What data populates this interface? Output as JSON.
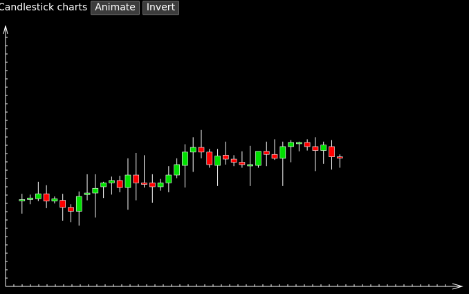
{
  "toolbar": {
    "title": "Candlestick charts",
    "animate_label": "Animate",
    "invert_label": "Invert"
  },
  "colors": {
    "background": "#000000",
    "up": "#00e000",
    "down": "#ff0000",
    "wick": "#ffffff",
    "axis": "#ffffff"
  },
  "chart_data": {
    "type": "candlestick",
    "title": "",
    "xlabel": "",
    "ylabel": "",
    "xlim": [
      0,
      55
    ],
    "ylim": [
      0,
      100
    ],
    "grid": false,
    "candles": [
      {
        "x": 1,
        "open": 33.0,
        "high": 35.5,
        "low": 27.9,
        "close": 33.3
      },
      {
        "x": 2,
        "open": 33.3,
        "high": 35.2,
        "low": 31.5,
        "close": 33.9
      },
      {
        "x": 3,
        "open": 33.6,
        "high": 40.1,
        "low": 32.7,
        "close": 35.5
      },
      {
        "x": 4,
        "open": 35.5,
        "high": 38.8,
        "low": 30.0,
        "close": 32.7
      },
      {
        "x": 5,
        "open": 32.7,
        "high": 34.5,
        "low": 31.8,
        "close": 33.6
      },
      {
        "x": 6,
        "open": 33.0,
        "high": 35.5,
        "low": 25.2,
        "close": 30.3
      },
      {
        "x": 7,
        "open": 30.3,
        "high": 31.5,
        "low": 24.6,
        "close": 28.8
      },
      {
        "x": 8,
        "open": 28.8,
        "high": 36.4,
        "low": 23.3,
        "close": 34.5
      },
      {
        "x": 9,
        "open": 35.2,
        "high": 43.0,
        "low": 33.0,
        "close": 35.8
      },
      {
        "x": 10,
        "open": 35.8,
        "high": 43.0,
        "low": 26.4,
        "close": 37.6
      },
      {
        "x": 11,
        "open": 38.2,
        "high": 40.1,
        "low": 33.9,
        "close": 39.7
      },
      {
        "x": 12,
        "open": 39.7,
        "high": 42.1,
        "low": 35.2,
        "close": 40.6
      },
      {
        "x": 13,
        "open": 40.6,
        "high": 42.4,
        "low": 36.1,
        "close": 37.9
      },
      {
        "x": 14,
        "open": 37.9,
        "high": 49.1,
        "low": 29.4,
        "close": 42.7
      },
      {
        "x": 15,
        "open": 42.7,
        "high": 51.2,
        "low": 33.0,
        "close": 39.7
      },
      {
        "x": 16,
        "open": 39.7,
        "high": 50.3,
        "low": 37.9,
        "close": 39.1
      },
      {
        "x": 17,
        "open": 39.7,
        "high": 43.0,
        "low": 32.1,
        "close": 38.2
      },
      {
        "x": 18,
        "open": 38.2,
        "high": 41.2,
        "low": 36.7,
        "close": 39.7
      },
      {
        "x": 19,
        "open": 39.7,
        "high": 46.1,
        "low": 36.1,
        "close": 42.7
      },
      {
        "x": 20,
        "open": 42.7,
        "high": 49.1,
        "low": 41.5,
        "close": 46.7
      },
      {
        "x": 21,
        "open": 46.4,
        "high": 54.5,
        "low": 37.9,
        "close": 51.5
      },
      {
        "x": 22,
        "open": 51.5,
        "high": 57.2,
        "low": 43.9,
        "close": 53.3
      },
      {
        "x": 23,
        "open": 53.3,
        "high": 60.0,
        "low": 49.1,
        "close": 51.5
      },
      {
        "x": 24,
        "open": 51.5,
        "high": 52.7,
        "low": 45.5,
        "close": 46.7
      },
      {
        "x": 25,
        "open": 46.4,
        "high": 52.7,
        "low": 38.5,
        "close": 50.0
      },
      {
        "x": 26,
        "open": 50.3,
        "high": 55.5,
        "low": 46.7,
        "close": 48.8
      },
      {
        "x": 27,
        "open": 48.8,
        "high": 50.3,
        "low": 46.1,
        "close": 47.6
      },
      {
        "x": 28,
        "open": 47.6,
        "high": 51.8,
        "low": 45.5,
        "close": 46.7
      },
      {
        "x": 29,
        "open": 46.7,
        "high": 53.9,
        "low": 38.5,
        "close": 46.7
      },
      {
        "x": 30,
        "open": 46.4,
        "high": 51.8,
        "low": 45.5,
        "close": 51.8
      },
      {
        "x": 31,
        "open": 51.8,
        "high": 55.5,
        "low": 46.1,
        "close": 50.6
      },
      {
        "x": 32,
        "open": 50.6,
        "high": 56.4,
        "low": 48.5,
        "close": 49.1
      },
      {
        "x": 33,
        "open": 49.1,
        "high": 55.5,
        "low": 38.5,
        "close": 53.6
      },
      {
        "x": 34,
        "open": 53.6,
        "high": 56.1,
        "low": 47.6,
        "close": 55.2
      },
      {
        "x": 35,
        "open": 55.2,
        "high": 55.5,
        "low": 51.8,
        "close": 55.2
      },
      {
        "x": 36,
        "open": 55.2,
        "high": 56.4,
        "low": 52.1,
        "close": 53.6
      },
      {
        "x": 37,
        "open": 53.6,
        "high": 57.2,
        "low": 44.2,
        "close": 52.1
      },
      {
        "x": 38,
        "open": 52.1,
        "high": 55.5,
        "low": 47.0,
        "close": 54.2
      },
      {
        "x": 39,
        "open": 53.6,
        "high": 56.1,
        "low": 44.8,
        "close": 49.7
      },
      {
        "x": 40,
        "open": 49.7,
        "high": 50.6,
        "low": 45.5,
        "close": 49.4
      }
    ]
  }
}
